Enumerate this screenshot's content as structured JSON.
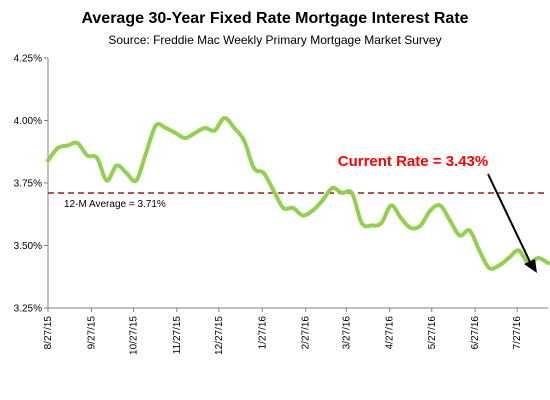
{
  "chart_data": {
    "type": "line",
    "title": "Average 30-Year Fixed Rate Mortgage Interest Rate",
    "subtitle": "Source: Freddie Mac Weekly Primary Mortgage Market Survey",
    "y_ticks": [
      "3.25%",
      "3.50%",
      "3.75%",
      "4.00%",
      "4.25%"
    ],
    "y_tick_values": [
      3.25,
      3.5,
      3.75,
      4.0,
      4.25
    ],
    "ylim": [
      3.25,
      4.25
    ],
    "x_ticks": [
      "8/27/15",
      "9/27/15",
      "10/27/15",
      "11/27/15",
      "12/27/15",
      "1/27/16",
      "2/27/16",
      "3/27/16",
      "4/27/16",
      "5/27/16",
      "6/27/16",
      "7/27/16"
    ],
    "series": [
      {
        "x": [
          "8/27/15",
          "9/3/15",
          "9/10/15",
          "9/17/15",
          "9/24/15",
          "10/1/15",
          "10/8/15",
          "10/15/15",
          "10/22/15",
          "10/29/15",
          "11/5/15",
          "11/12/15",
          "11/19/15",
          "11/26/15",
          "12/3/15",
          "12/10/15",
          "12/17/15",
          "12/24/15",
          "12/31/15",
          "1/7/16",
          "1/14/16",
          "1/21/16",
          "1/28/16",
          "2/4/16",
          "2/11/16",
          "2/18/16",
          "2/25/16",
          "3/3/16",
          "3/10/16",
          "3/17/16",
          "3/24/16",
          "3/31/16",
          "4/7/16",
          "4/14/16",
          "4/21/16",
          "4/28/16",
          "5/5/16",
          "5/12/16",
          "5/19/16",
          "5/26/16",
          "6/2/16",
          "6/9/16",
          "6/16/16",
          "6/23/16",
          "6/30/16",
          "7/7/16",
          "7/14/16",
          "7/21/16",
          "7/28/16",
          "8/4/16",
          "8/11/16",
          "8/18/16"
        ],
        "values": [
          3.84,
          3.89,
          3.9,
          3.91,
          3.86,
          3.85,
          3.76,
          3.82,
          3.79,
          3.76,
          3.87,
          3.98,
          3.97,
          3.95,
          3.93,
          3.95,
          3.97,
          3.96,
          4.01,
          3.97,
          3.92,
          3.81,
          3.79,
          3.72,
          3.65,
          3.65,
          3.62,
          3.64,
          3.68,
          3.73,
          3.71,
          3.71,
          3.59,
          3.58,
          3.59,
          3.66,
          3.61,
          3.57,
          3.58,
          3.64,
          3.66,
          3.6,
          3.54,
          3.56,
          3.48,
          3.41,
          3.42,
          3.45,
          3.48,
          3.43,
          3.45,
          3.43
        ],
        "color": "#92d050"
      }
    ],
    "reference_line": {
      "label": "12-M Average = 3.71%",
      "value": 3.71,
      "color": "#9b1c1c"
    },
    "annotation": {
      "text": "Current Rate = 3.43%",
      "color": "#ff0000"
    },
    "grid": false,
    "legend": "none"
  }
}
